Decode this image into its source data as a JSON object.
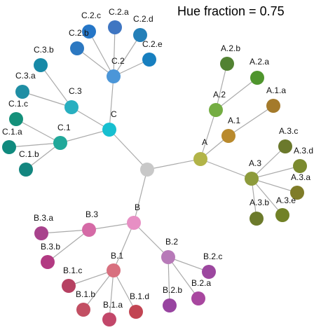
{
  "title": "Hue fraction = 0.75",
  "nodes": [
    {
      "id": "root",
      "label": "",
      "color": "#c8c8c8"
    },
    {
      "id": "A",
      "label": "A",
      "color": "#b2b448"
    },
    {
      "id": "A.1",
      "label": "A.1",
      "color": "#b98a2d"
    },
    {
      "id": "A.1.a",
      "label": "A.1.a",
      "color": "#a47a2b"
    },
    {
      "id": "A.2",
      "label": "A.2",
      "color": "#74ad42"
    },
    {
      "id": "A.2.a",
      "label": "A.2.a",
      "color": "#4f952d"
    },
    {
      "id": "A.2.b",
      "label": "A.2.b",
      "color": "#528232"
    },
    {
      "id": "A.3",
      "label": "A.3",
      "color": "#8d9b3c"
    },
    {
      "id": "A.3.a",
      "label": "A.3.a",
      "color": "#7f7c28"
    },
    {
      "id": "A.3.b",
      "label": "A.3.b",
      "color": "#6c7a2b"
    },
    {
      "id": "A.3.c",
      "label": "A.3.c",
      "color": "#6b792c"
    },
    {
      "id": "A.3.d",
      "label": "A.3.d",
      "color": "#7b8a2f"
    },
    {
      "id": "A.3.e",
      "label": "A.3.e",
      "color": "#718126"
    },
    {
      "id": "B",
      "label": "B",
      "color": "#e78fc4"
    },
    {
      "id": "B.1",
      "label": "B.1",
      "color": "#d8707f"
    },
    {
      "id": "B.1.a",
      "label": "B.1.a",
      "color": "#c2476a"
    },
    {
      "id": "B.1.b",
      "label": "B.1.b",
      "color": "#c24f63"
    },
    {
      "id": "B.1.c",
      "label": "B.1.c",
      "color": "#b64162"
    },
    {
      "id": "B.1.d",
      "label": "B.1.d",
      "color": "#c24553"
    },
    {
      "id": "B.2",
      "label": "B.2",
      "color": "#b77ab8"
    },
    {
      "id": "B.2.a",
      "label": "B.2.a",
      "color": "#a8479f"
    },
    {
      "id": "B.2.b",
      "label": "B.2.b",
      "color": "#9844a0"
    },
    {
      "id": "B.2.c",
      "label": "B.2.c",
      "color": "#9c479f"
    },
    {
      "id": "B.3",
      "label": "B.3",
      "color": "#d56aa6"
    },
    {
      "id": "B.3.a",
      "label": "B.3.a",
      "color": "#a8428c"
    },
    {
      "id": "B.3.b",
      "label": "B.3.b",
      "color": "#b23a82"
    },
    {
      "id": "C",
      "label": "C",
      "color": "#17bfd0"
    },
    {
      "id": "C.1",
      "label": "C.1",
      "color": "#21a89a"
    },
    {
      "id": "C.1.a",
      "label": "C.1.a",
      "color": "#108a7e"
    },
    {
      "id": "C.1.b",
      "label": "C.1.b",
      "color": "#13867f"
    },
    {
      "id": "C.1.c",
      "label": "C.1.c",
      "color": "#14907a"
    },
    {
      "id": "C.2",
      "label": "C.2",
      "color": "#4b96d8"
    },
    {
      "id": "C.2.a",
      "label": "C.2.a",
      "color": "#3f76c2"
    },
    {
      "id": "C.2.b",
      "label": "C.2.b",
      "color": "#2c78c1"
    },
    {
      "id": "C.2.c",
      "label": "C.2.c",
      "color": "#2576c7"
    },
    {
      "id": "C.2.d",
      "label": "C.2.d",
      "color": "#247fb8"
    },
    {
      "id": "C.2.e",
      "label": "C.2.e",
      "color": "#177fbf"
    },
    {
      "id": "C.3",
      "label": "C.3",
      "color": "#28afc0"
    },
    {
      "id": "C.3.a",
      "label": "C.3.a",
      "color": "#1f8ea4"
    },
    {
      "id": "C.3.b",
      "label": "C.3.b",
      "color": "#1789a7"
    }
  ],
  "edges": [
    [
      "root",
      "A"
    ],
    [
      "root",
      "B"
    ],
    [
      "root",
      "C"
    ],
    [
      "A",
      "A.1"
    ],
    [
      "A",
      "A.2"
    ],
    [
      "A",
      "A.3"
    ],
    [
      "A.1",
      "A.1.a"
    ],
    [
      "A.2",
      "A.2.a"
    ],
    [
      "A.2",
      "A.2.b"
    ],
    [
      "A.3",
      "A.3.a"
    ],
    [
      "A.3",
      "A.3.b"
    ],
    [
      "A.3",
      "A.3.c"
    ],
    [
      "A.3",
      "A.3.d"
    ],
    [
      "A.3",
      "A.3.e"
    ],
    [
      "B",
      "B.1"
    ],
    [
      "B",
      "B.2"
    ],
    [
      "B",
      "B.3"
    ],
    [
      "B.1",
      "B.1.a"
    ],
    [
      "B.1",
      "B.1.b"
    ],
    [
      "B.1",
      "B.1.c"
    ],
    [
      "B.1",
      "B.1.d"
    ],
    [
      "B.2",
      "B.2.a"
    ],
    [
      "B.2",
      "B.2.b"
    ],
    [
      "B.2",
      "B.2.c"
    ],
    [
      "B.3",
      "B.3.a"
    ],
    [
      "B.3",
      "B.3.b"
    ],
    [
      "C",
      "C.1"
    ],
    [
      "C",
      "C.2"
    ],
    [
      "C",
      "C.3"
    ],
    [
      "C.1",
      "C.1.a"
    ],
    [
      "C.1",
      "C.1.b"
    ],
    [
      "C.1",
      "C.1.c"
    ],
    [
      "C.2",
      "C.2.a"
    ],
    [
      "C.2",
      "C.2.b"
    ],
    [
      "C.2",
      "C.2.c"
    ],
    [
      "C.2",
      "C.2.d"
    ],
    [
      "C.2",
      "C.2.e"
    ],
    [
      "C.3",
      "C.3.a"
    ],
    [
      "C.3",
      "C.3.b"
    ]
  ]
}
